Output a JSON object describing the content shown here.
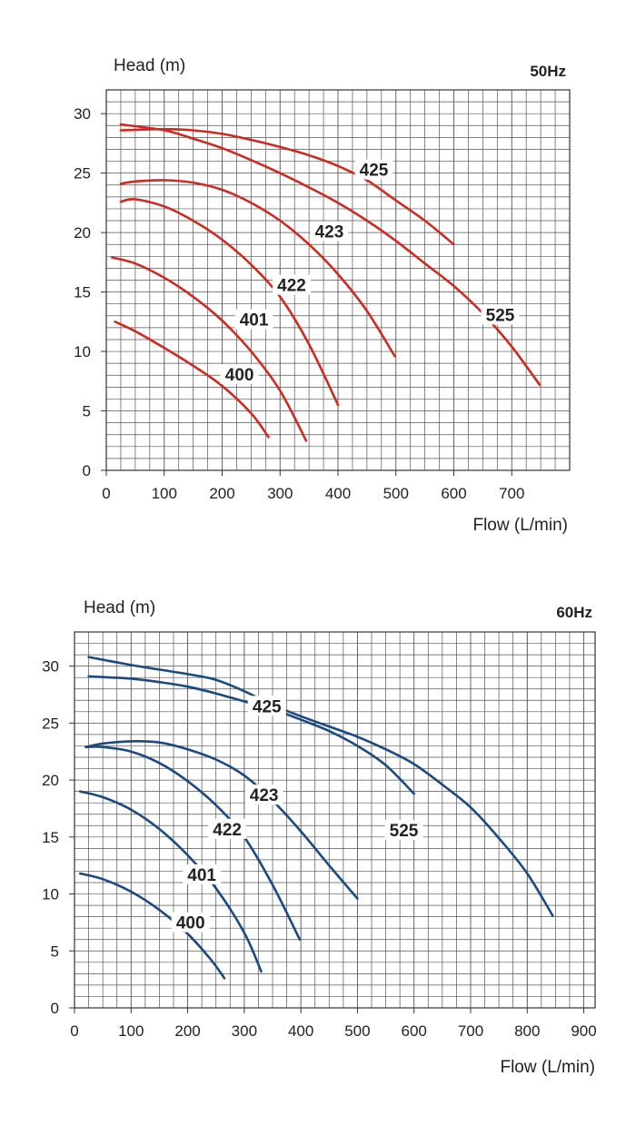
{
  "chart_data": [
    {
      "type": "line",
      "ylabel": "Head (m)",
      "xlabel": "Flow (L/min)",
      "freq_label": "50Hz",
      "freq_color": "#1a4a80",
      "curve_color": "#cc2b22",
      "xlim": [
        0,
        800
      ],
      "ylim": [
        0,
        32
      ],
      "xticks": [
        0,
        100,
        200,
        300,
        400,
        500,
        600,
        700
      ],
      "yticks": [
        0,
        5,
        10,
        15,
        20,
        25,
        30
      ],
      "series": [
        {
          "name": "400",
          "label_at": [
            230,
            7.8
          ],
          "points": [
            [
              15,
              12.5
            ],
            [
              50,
              11.7
            ],
            [
              100,
              10.3
            ],
            [
              150,
              8.8
            ],
            [
              200,
              7.1
            ],
            [
              250,
              4.8
            ],
            [
              280,
              2.8
            ]
          ]
        },
        {
          "name": "401",
          "label_at": [
            255,
            12.4
          ],
          "points": [
            [
              10,
              17.9
            ],
            [
              50,
              17.4
            ],
            [
              100,
              16.2
            ],
            [
              150,
              14.6
            ],
            [
              200,
              12.6
            ],
            [
              250,
              10.0
            ],
            [
              300,
              6.7
            ],
            [
              345,
              2.5
            ]
          ]
        },
        {
          "name": "422",
          "label_at": [
            320,
            15.3
          ],
          "points": [
            [
              25,
              22.6
            ],
            [
              50,
              22.8
            ],
            [
              100,
              22.2
            ],
            [
              150,
              21.0
            ],
            [
              200,
              19.4
            ],
            [
              250,
              17.3
            ],
            [
              300,
              14.6
            ],
            [
              350,
              10.6
            ],
            [
              400,
              5.5
            ]
          ]
        },
        {
          "name": "423",
          "label_at": [
            385,
            19.8
          ],
          "points": [
            [
              25,
              24.1
            ],
            [
              50,
              24.3
            ],
            [
              100,
              24.4
            ],
            [
              150,
              24.2
            ],
            [
              200,
              23.6
            ],
            [
              250,
              22.5
            ],
            [
              300,
              21.0
            ],
            [
              350,
              19.0
            ],
            [
              400,
              16.5
            ],
            [
              450,
              13.4
            ],
            [
              498,
              9.6
            ]
          ]
        },
        {
          "name": "425",
          "label_at": [
            462,
            25.0
          ],
          "points": [
            [
              25,
              28.6
            ],
            [
              100,
              28.7
            ],
            [
              150,
              28.6
            ],
            [
              200,
              28.3
            ],
            [
              250,
              27.8
            ],
            [
              300,
              27.2
            ],
            [
              350,
              26.5
            ],
            [
              400,
              25.6
            ],
            [
              450,
              24.4
            ],
            [
              500,
              22.7
            ],
            [
              550,
              21.0
            ],
            [
              600,
              19.0
            ]
          ]
        },
        {
          "name": "525",
          "label_at": [
            680,
            12.8
          ],
          "points": [
            [
              25,
              29.1
            ],
            [
              100,
              28.6
            ],
            [
              150,
              27.9
            ],
            [
              200,
              27.1
            ],
            [
              250,
              26.1
            ],
            [
              300,
              25.0
            ],
            [
              350,
              23.8
            ],
            [
              400,
              22.5
            ],
            [
              450,
              21.0
            ],
            [
              500,
              19.3
            ],
            [
              550,
              17.4
            ],
            [
              600,
              15.5
            ],
            [
              650,
              13.2
            ],
            [
              700,
              10.4
            ],
            [
              748,
              7.2
            ]
          ]
        }
      ]
    },
    {
      "type": "line",
      "ylabel": "Head (m)",
      "xlabel": "Flow (L/min)",
      "freq_label": "60Hz",
      "freq_color": "#cc2b22",
      "curve_color": "#1a4a80",
      "xlim": [
        0,
        920
      ],
      "ylim": [
        0,
        33
      ],
      "xticks": [
        0,
        100,
        200,
        300,
        400,
        500,
        600,
        700,
        800,
        900
      ],
      "yticks": [
        0,
        5,
        10,
        15,
        20,
        25,
        30
      ],
      "series": [
        {
          "name": "400",
          "label_at": [
            205,
            7.2
          ],
          "points": [
            [
              10,
              11.8
            ],
            [
              50,
              11.3
            ],
            [
              100,
              10.2
            ],
            [
              150,
              8.6
            ],
            [
              200,
              6.5
            ],
            [
              240,
              4.3
            ],
            [
              265,
              2.6
            ]
          ]
        },
        {
          "name": "401",
          "label_at": [
            225,
            11.4
          ],
          "points": [
            [
              10,
              19.0
            ],
            [
              50,
              18.5
            ],
            [
              100,
              17.4
            ],
            [
              150,
              15.7
            ],
            [
              200,
              13.4
            ],
            [
              250,
              10.5
            ],
            [
              300,
              6.6
            ],
            [
              330,
              3.2
            ]
          ]
        },
        {
          "name": "422",
          "label_at": [
            270,
            15.4
          ],
          "points": [
            [
              20,
              22.9
            ],
            [
              50,
              22.9
            ],
            [
              100,
              22.5
            ],
            [
              150,
              21.5
            ],
            [
              200,
              19.9
            ],
            [
              250,
              17.8
            ],
            [
              300,
              15.0
            ],
            [
              350,
              10.8
            ],
            [
              398,
              6.0
            ]
          ]
        },
        {
          "name": "423",
          "label_at": [
            335,
            18.4
          ],
          "points": [
            [
              20,
              22.9
            ],
            [
              50,
              23.2
            ],
            [
              100,
              23.4
            ],
            [
              150,
              23.3
            ],
            [
              200,
              22.7
            ],
            [
              250,
              21.8
            ],
            [
              300,
              20.4
            ],
            [
              350,
              18.2
            ],
            [
              400,
              15.5
            ],
            [
              450,
              12.5
            ],
            [
              500,
              9.6
            ]
          ]
        },
        {
          "name": "425",
          "label_at": [
            340,
            26.2
          ],
          "points": [
            [
              25,
              29.1
            ],
            [
              100,
              28.9
            ],
            [
              150,
              28.6
            ],
            [
              200,
              28.2
            ],
            [
              250,
              27.6
            ],
            [
              300,
              26.9
            ],
            [
              350,
              26.2
            ],
            [
              400,
              25.3
            ],
            [
              450,
              24.3
            ],
            [
              500,
              23.0
            ],
            [
              550,
              21.3
            ],
            [
              600,
              18.8
            ]
          ]
        },
        {
          "name": "525",
          "label_at": [
            582,
            15.3
          ],
          "points": [
            [
              25,
              30.8
            ],
            [
              100,
              30.1
            ],
            [
              150,
              29.7
            ],
            [
              200,
              29.3
            ],
            [
              250,
              28.8
            ],
            [
              300,
              27.8
            ],
            [
              350,
              26.6
            ],
            [
              400,
              25.6
            ],
            [
              450,
              24.7
            ],
            [
              500,
              23.8
            ],
            [
              550,
              22.7
            ],
            [
              600,
              21.4
            ],
            [
              650,
              19.6
            ],
            [
              700,
              17.6
            ],
            [
              750,
              14.9
            ],
            [
              800,
              11.8
            ],
            [
              845,
              8.1
            ]
          ]
        }
      ]
    }
  ]
}
